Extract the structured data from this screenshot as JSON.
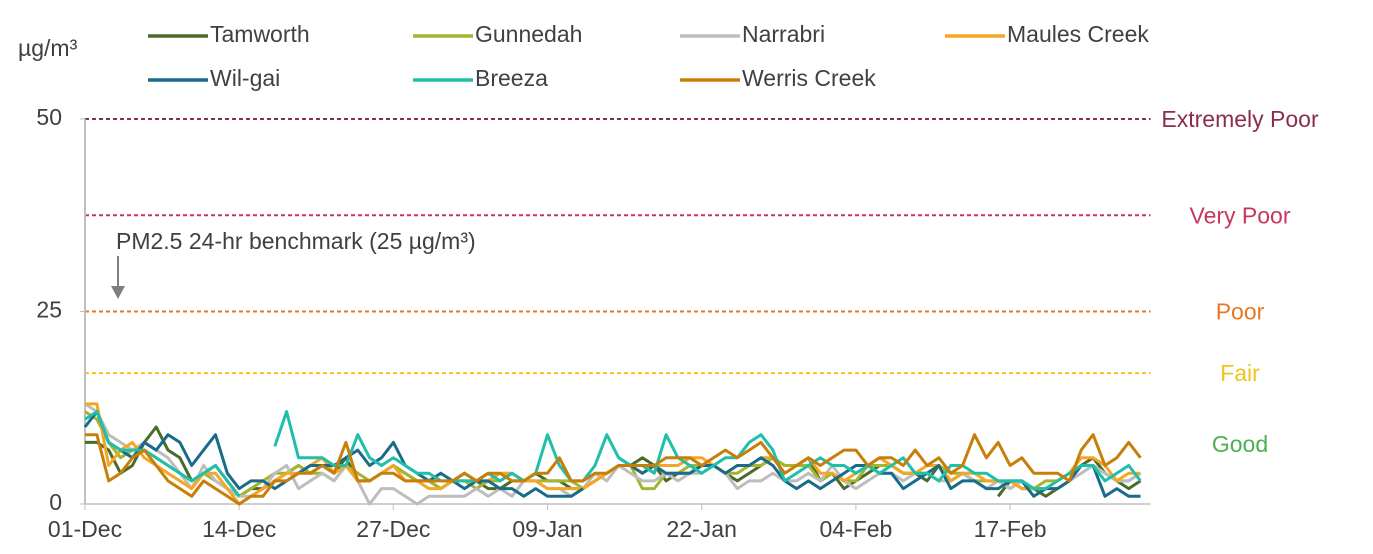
{
  "chart_data": {
    "type": "line",
    "y_label": "µg/m³",
    "annotation": "PM2.5 24-hr benchmark  (25 µg/m³)",
    "categories": [
      "01-Dec",
      null,
      null,
      null,
      null,
      null,
      null,
      null,
      null,
      null,
      null,
      null,
      null,
      "14-Dec",
      null,
      null,
      null,
      null,
      null,
      null,
      null,
      null,
      null,
      null,
      null,
      null,
      "27-Dec",
      null,
      null,
      null,
      null,
      null,
      null,
      null,
      null,
      null,
      null,
      null,
      null,
      "09-Jan",
      null,
      null,
      null,
      null,
      null,
      null,
      null,
      null,
      null,
      null,
      null,
      null,
      "22-Jan",
      null,
      null,
      null,
      null,
      null,
      null,
      null,
      null,
      null,
      null,
      null,
      null,
      "04-Feb",
      null,
      null,
      null,
      null,
      null,
      null,
      null,
      null,
      null,
      null,
      null,
      null,
      "17-Feb",
      null,
      null,
      null,
      null,
      null,
      null,
      null,
      null,
      null,
      null,
      null
    ],
    "ylim": [
      0,
      50
    ],
    "yticks": [
      0,
      25,
      50
    ],
    "thresholds": [
      {
        "label": "Extremely Poor",
        "value": 50,
        "color": "#8b2d4f"
      },
      {
        "label": "Very Poor",
        "value": 37.5,
        "color": "#c8375e"
      },
      {
        "label": "Poor",
        "value": 25,
        "color": "#e87722"
      },
      {
        "label": "Fair",
        "value": 17,
        "color": "#f0c419"
      },
      {
        "label": "Good",
        "color": "#4caf50"
      }
    ],
    "series": [
      {
        "name": "Tamworth",
        "color": "#4a6b2a",
        "values": [
          8,
          8,
          7,
          4,
          5,
          8,
          10,
          7,
          6,
          3,
          4,
          5,
          3,
          1,
          2,
          2,
          3,
          4,
          5,
          4,
          5,
          4,
          6,
          3,
          3,
          4,
          5,
          4,
          3,
          3,
          2,
          3,
          4,
          3,
          2,
          2,
          3,
          3,
          4,
          3,
          3,
          2,
          2,
          3,
          4,
          5,
          5,
          6,
          5,
          3,
          4,
          4,
          5,
          5,
          4,
          3,
          4,
          5,
          6,
          5,
          5,
          6,
          3,
          4,
          2,
          3,
          4,
          5,
          5,
          4,
          4,
          3,
          5,
          3,
          4,
          3,
          null,
          1,
          3,
          2,
          2,
          1,
          2,
          3,
          5,
          6,
          4,
          3,
          2,
          3
        ]
      },
      {
        "name": "Gunnedah",
        "color": "#a5b530",
        "values": [
          12,
          11,
          8,
          6,
          7,
          7,
          6,
          5,
          4,
          3,
          4,
          3,
          2,
          1,
          2,
          3,
          4,
          4,
          5,
          4,
          4,
          3,
          5,
          4,
          3,
          4,
          5,
          4,
          3,
          3,
          2,
          3,
          3,
          2,
          3,
          3,
          4,
          3,
          3,
          3,
          3,
          3,
          2,
          3,
          4,
          5,
          5,
          2,
          2,
          4,
          4,
          5,
          5,
          5,
          4,
          4,
          5,
          5,
          6,
          5,
          5,
          5,
          3,
          4,
          3,
          3,
          5,
          5,
          5,
          4,
          4,
          4,
          5,
          4,
          4,
          3,
          3,
          3,
          2,
          3,
          2,
          3,
          3,
          4,
          5,
          5,
          4,
          3,
          3,
          4
        ]
      },
      {
        "name": "Narrabri",
        "color": "#bdbdbd",
        "values": [
          13,
          12,
          9,
          8,
          7,
          8,
          7,
          6,
          4,
          2,
          5,
          3,
          2,
          1,
          1,
          2,
          4,
          5,
          2,
          3,
          4,
          3,
          5,
          3,
          0,
          2,
          2,
          1,
          0,
          1,
          1,
          1,
          1,
          2,
          1,
          2,
          1,
          3,
          3,
          2,
          2,
          1,
          2,
          4,
          3,
          5,
          4,
          3,
          3,
          4,
          3,
          4,
          4,
          5,
          4,
          2,
          3,
          3,
          4,
          3,
          3,
          4,
          3,
          5,
          3,
          2,
          3,
          4,
          4,
          3,
          4,
          4,
          3,
          3,
          4,
          3,
          2,
          3,
          2,
          3,
          2,
          2,
          2,
          3,
          4,
          5,
          4,
          3,
          3,
          4
        ]
      },
      {
        "name": "Maules Creek",
        "color": "#f5a623",
        "values": [
          13,
          13,
          5,
          7,
          8,
          6,
          5,
          4,
          3,
          2,
          4,
          4,
          2,
          0,
          1,
          2,
          3,
          4,
          4,
          5,
          6,
          4,
          5,
          3,
          3,
          4,
          5,
          3,
          3,
          2,
          2,
          3,
          3,
          3,
          3,
          4,
          4,
          3,
          3,
          2,
          2,
          2,
          2,
          3,
          4,
          5,
          5,
          4,
          5,
          5,
          5,
          6,
          6,
          5,
          4,
          5,
          5,
          6,
          6,
          4,
          5,
          6,
          4,
          4,
          3,
          4,
          5,
          6,
          5,
          4,
          4,
          5,
          5,
          3,
          4,
          4,
          3,
          3,
          3,
          2,
          2,
          2,
          3,
          4,
          6,
          6,
          5,
          3,
          4,
          4
        ]
      },
      {
        "name": "Wil-gai",
        "color": "#1a6b8a",
        "values": [
          10,
          12,
          8,
          7,
          6,
          8,
          7,
          9,
          8,
          5,
          7,
          9,
          4,
          2,
          3,
          3,
          2,
          3,
          4,
          5,
          5,
          5,
          6,
          7,
          5,
          6,
          8,
          5,
          4,
          3,
          4,
          3,
          2,
          3,
          3,
          2,
          2,
          1,
          2,
          1,
          1,
          1,
          2,
          null,
          null,
          6,
          5,
          4,
          5,
          4,
          4,
          4,
          5,
          5,
          4,
          5,
          5,
          6,
          5,
          3,
          2,
          3,
          2,
          3,
          4,
          5,
          5,
          4,
          4,
          2,
          3,
          4,
          5,
          2,
          3,
          3,
          2,
          2,
          3,
          3,
          1,
          2,
          2,
          3,
          5,
          5,
          1,
          2,
          1,
          1
        ]
      },
      {
        "name": "Breeza",
        "color": "#1fbfaa",
        "values": [
          11,
          12,
          8,
          7,
          7,
          7,
          6,
          5,
          4,
          3,
          4,
          5,
          3,
          1,
          null,
          null,
          7.5,
          12,
          6,
          6,
          6,
          5,
          5,
          9,
          6,
          5,
          6,
          5,
          4,
          4,
          3,
          3,
          3,
          3,
          4,
          3,
          4,
          3,
          4,
          9,
          5,
          3,
          3,
          5,
          9,
          6,
          5,
          5,
          4,
          9,
          6,
          5,
          4,
          5,
          6,
          6,
          8,
          9,
          7,
          3,
          4,
          5,
          6,
          5,
          5,
          4,
          5,
          4,
          5,
          6,
          4,
          4,
          3,
          5,
          5,
          4,
          4,
          3,
          3,
          3,
          2,
          2,
          3,
          4,
          5,
          5,
          3,
          4,
          5,
          3
        ]
      },
      {
        "name": "Werris Creek",
        "color": "#c87f0a",
        "values": [
          9,
          9,
          3,
          4,
          6,
          7,
          5,
          3,
          2,
          1,
          3,
          2,
          1,
          0,
          1,
          1,
          3,
          3,
          4,
          4,
          5,
          4,
          8,
          3,
          3,
          4,
          4,
          3,
          3,
          3,
          3,
          3,
          4,
          3,
          4,
          4,
          3,
          3,
          4,
          4,
          6,
          3,
          3,
          4,
          4,
          5,
          5,
          5,
          5,
          6,
          6,
          6,
          5,
          6,
          7,
          6,
          7,
          8,
          6,
          4,
          5,
          6,
          5,
          6,
          7,
          7,
          5,
          6,
          6,
          5,
          7,
          5,
          6,
          4,
          5,
          9,
          6,
          8,
          5,
          6,
          4,
          4,
          4,
          3,
          7,
          9,
          5,
          6,
          8,
          6
        ]
      }
    ]
  }
}
